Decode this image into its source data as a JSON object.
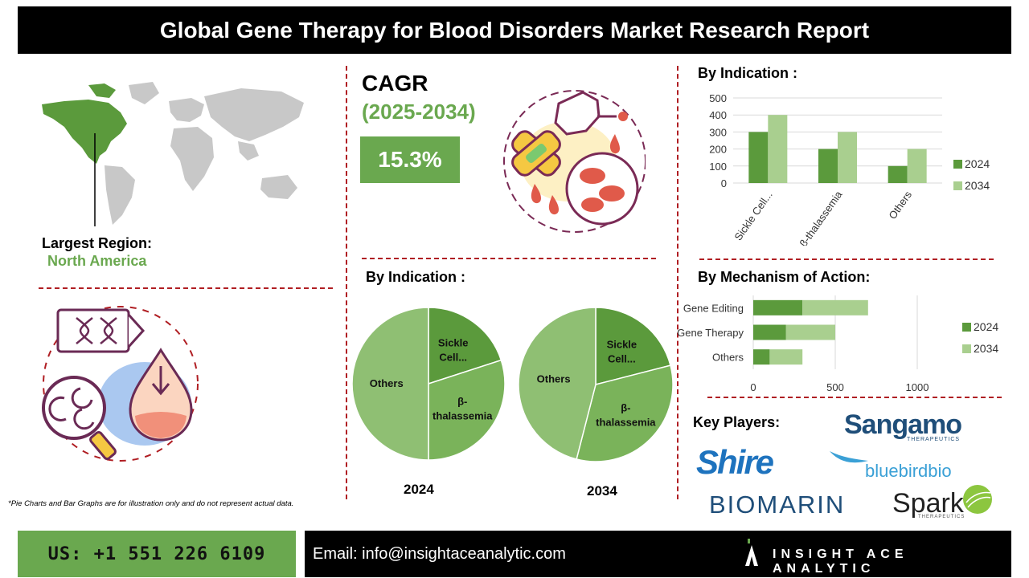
{
  "title": "Global Gene Therapy for Blood Disorders Market Research Report",
  "region": {
    "label": "Largest Region:",
    "value": "North America"
  },
  "cagr": {
    "label": "CAGR",
    "period": "(2025-2034)",
    "value": "15.3%"
  },
  "indication_bar_title": "By Indication :",
  "indication_pie_title": "By Indication :",
  "mechanism_title": "By Mechanism of Action:",
  "key_players_title": "Key Players:",
  "players": {
    "sangamo": "Sangamo",
    "sangamo_sub": "THERAPEUTICS",
    "shire": "Shire",
    "bluebird": "bluebirdbio",
    "biomarin": "BIOMARIN",
    "spark": "Spark",
    "spark_sub": "THERAPEUTICS"
  },
  "disclaimer": "*Pie Charts and Bar Graphs are for illustration only and do not represent actual data.",
  "footer": {
    "phone": "US: +1 551 226 6109",
    "email": "Email: info@insightaceanalytic.com",
    "brand": "INSIGHT ACE ANALYTIC"
  },
  "colors": {
    "dark_green": "#5b9a3c",
    "light_green": "#a9cf8f",
    "accent_green": "#6aa84f",
    "divider_red": "#b01e23"
  },
  "chart_data": [
    {
      "type": "bar",
      "categories": [
        "Sickle Cell...",
        "β-thalassemia",
        "Others"
      ],
      "series": [
        {
          "name": "2024",
          "values": [
            300,
            200,
            100
          ]
        },
        {
          "name": "2034",
          "values": [
            400,
            300,
            200
          ]
        }
      ],
      "ylim": [
        0,
        500
      ],
      "yticks": [
        0,
        100,
        200,
        300,
        400,
        500
      ],
      "grid": true,
      "legend": "right"
    },
    {
      "type": "bar",
      "orientation": "horizontal",
      "stacked": true,
      "categories": [
        "Gene Editing",
        "Gene Therapy",
        "Others"
      ],
      "series": [
        {
          "name": "2024",
          "values": [
            300,
            200,
            100
          ]
        },
        {
          "name": "2034",
          "values": [
            400,
            300,
            200
          ]
        }
      ],
      "xlim": [
        0,
        1000
      ],
      "xticks": [
        0,
        500,
        1000
      ],
      "grid": true,
      "legend": "right"
    },
    {
      "type": "pie",
      "label": "2024",
      "slices": [
        {
          "name": "Sickle Cell...",
          "value": 20
        },
        {
          "name": "β-thalassemia",
          "value": 30
        },
        {
          "name": "Others",
          "value": 50
        }
      ]
    },
    {
      "type": "pie",
      "label": "2034",
      "slices": [
        {
          "name": "Sickle Cell...",
          "value": 21
        },
        {
          "name": "β-thalassemia",
          "value": 33
        },
        {
          "name": "Others",
          "value": 46
        }
      ]
    }
  ]
}
